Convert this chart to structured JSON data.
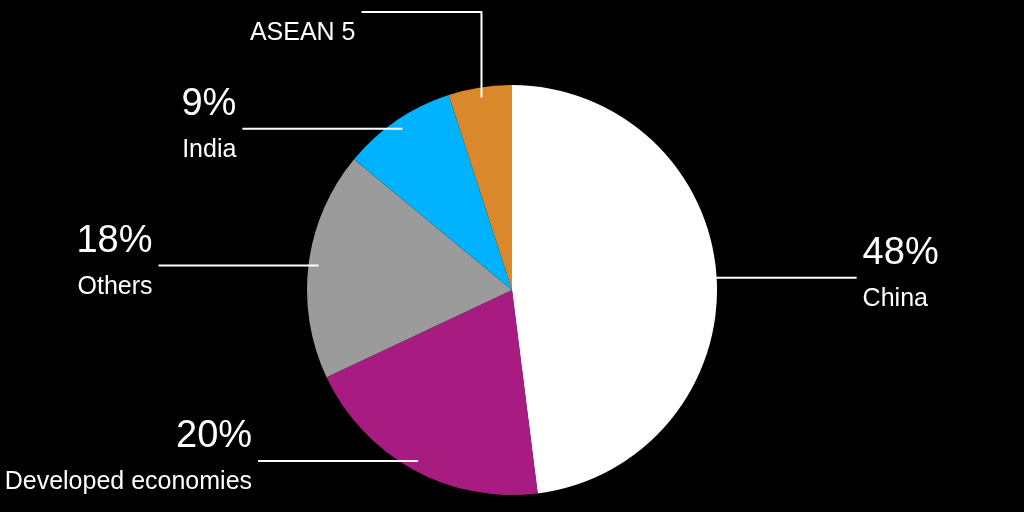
{
  "chart_data": {
    "type": "pie",
    "categories": [
      "China",
      "Developed economies",
      "Others",
      "India",
      "ASEAN 5"
    ],
    "values": [
      48,
      20,
      18,
      9,
      5
    ],
    "colors": [
      "#ffffff",
      "#a81c82",
      "#9b9b9b",
      "#00b2ff",
      "#d9892b"
    ],
    "value_labels": [
      "48%",
      "20%",
      "18%",
      "9%",
      null
    ]
  }
}
